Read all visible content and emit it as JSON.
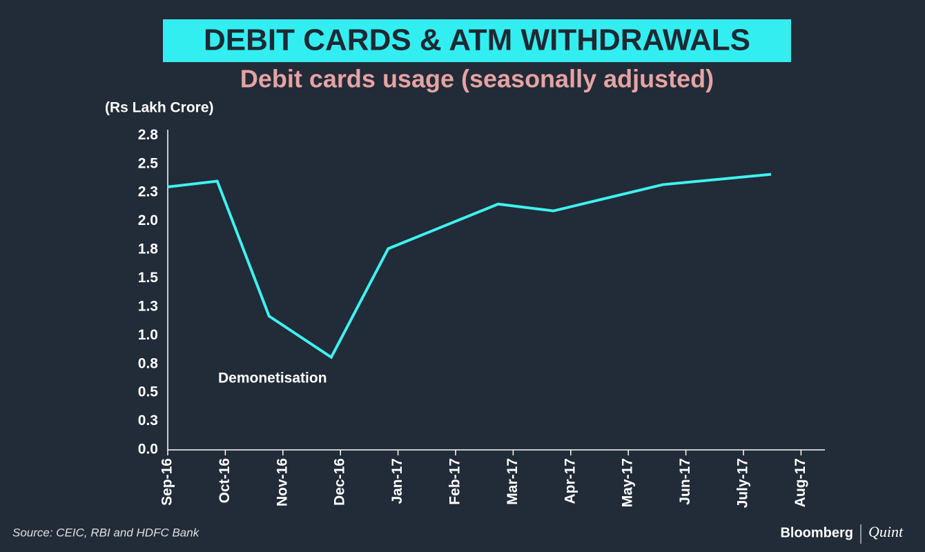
{
  "chart_data": {
    "type": "line",
    "title": "DEBIT CARDS & ATM WITHDRAWALS",
    "subtitle": "Debit cards usage (seasonally adjusted)",
    "y_label": "(Rs Lakh Crore)",
    "annotation": "Demonetisation",
    "source": "Source: CEIC, RBI and HDFC Bank",
    "x": [
      0,
      0.86,
      1.76,
      2.84,
      3.83,
      5.74,
      6.7,
      8.6,
      10.48
    ],
    "values": [
      2.3,
      2.35,
      1.17,
      0.81,
      1.76,
      2.15,
      2.09,
      2.32,
      2.41
    ],
    "color": "#3ff2f0",
    "xlim": [
      0,
      11.4
    ],
    "xticks": [
      {
        "value": 0,
        "label": "Sep-16"
      },
      {
        "value": 1,
        "label": "Oct-16"
      },
      {
        "value": 2,
        "label": "Nov-16"
      },
      {
        "value": 3,
        "label": "Dec-16"
      },
      {
        "value": 4,
        "label": "Jan-17"
      },
      {
        "value": 5,
        "label": "Feb-17"
      },
      {
        "value": 6,
        "label": "Mar-17"
      },
      {
        "value": 7,
        "label": "Apr-17"
      },
      {
        "value": 8,
        "label": "May-17"
      },
      {
        "value": 9,
        "label": "Jun-17"
      },
      {
        "value": 10,
        "label": "July-17"
      },
      {
        "value": 11,
        "label": "Aug-17"
      }
    ],
    "ylim": [
      0,
      2.8
    ],
    "yticks": [
      {
        "value": 0,
        "label": "0.0"
      },
      {
        "value": 0.25,
        "label": "0.3"
      },
      {
        "value": 0.5,
        "label": "0.5"
      },
      {
        "value": 0.75,
        "label": "0.8"
      },
      {
        "value": 1,
        "label": "1.0"
      },
      {
        "value": 1.25,
        "label": "1.3"
      },
      {
        "value": 1.5,
        "label": "1.5"
      },
      {
        "value": 1.75,
        "label": "1.8"
      },
      {
        "value": 2,
        "label": "2.0"
      },
      {
        "value": 2.25,
        "label": "2.3"
      },
      {
        "value": 2.5,
        "label": "2.5"
      },
      {
        "value": 2.75,
        "label": "2.8"
      }
    ]
  },
  "brand": {
    "left": "Bloomberg",
    "right": "Quint"
  }
}
